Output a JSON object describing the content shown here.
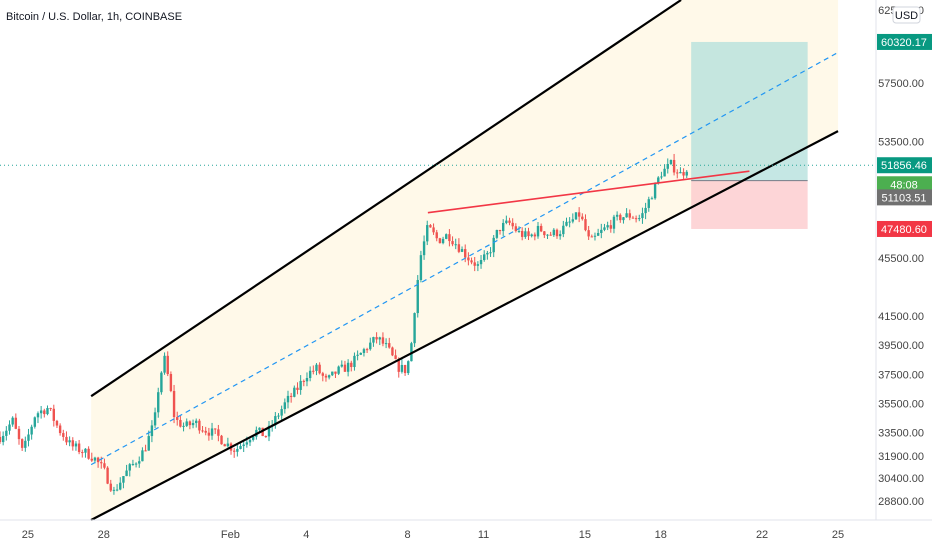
{
  "header": {
    "title": "Bitcoin / U.S. Dollar, 1h, COINBASE",
    "currency": "USD"
  },
  "colors": {
    "candle_up": "#26a69a",
    "candle_down": "#ef5350",
    "channel_fill": "#fff8e7",
    "channel_line": "#000000",
    "midline": "#2196f3",
    "resistance": "#f23645",
    "target_zone": "#b2dfdb",
    "stop_zone": "#fccbcd",
    "last_price_line": "#26a69a",
    "tag_last": "#089981",
    "tag_target": "#089981",
    "tag_current": "#4caf50",
    "tag_mid": "#707070",
    "tag_stop": "#f23645"
  },
  "chart_data": {
    "type": "candlestick",
    "title": "Bitcoin / U.S. Dollar, 1h, COINBASE",
    "price_axis": {
      "ticks": [
        "62500.00",
        "57500.00",
        "53500.00",
        "45500.00",
        "41500.00",
        "39500.00",
        "37500.00",
        "35500.00",
        "33500.00",
        "31900.00",
        "30400.00",
        "28800.00"
      ],
      "tick_values": [
        62500,
        57500,
        53500,
        45500,
        41500,
        39500,
        37500,
        35500,
        33500,
        31900,
        30400,
        28800
      ],
      "ylim": [
        27500,
        63200
      ]
    },
    "time_axis": {
      "ticks": [
        "25",
        "28",
        "Feb",
        "4",
        "8",
        "11",
        "15",
        "18",
        "22",
        "25"
      ],
      "tick_days": [
        -7,
        -4,
        1,
        4,
        8,
        11,
        15,
        18,
        22,
        25
      ],
      "xlim": [
        -8.1,
        26.5
      ]
    },
    "price_tags": [
      {
        "label": "60320.17",
        "value": 60320.17,
        "kind": "target"
      },
      {
        "label": "51856.46",
        "value": 51856.46,
        "kind": "last"
      },
      {
        "label": "48:08",
        "value": 50550,
        "kind": "current"
      },
      {
        "label": "51103.51",
        "value": 49650,
        "kind": "mid"
      },
      {
        "label": "47480.60",
        "value": 47480.6,
        "kind": "stop"
      }
    ],
    "last_price": 51856.46,
    "channel": {
      "upper": [
        [
          -4.5,
          36000
        ],
        [
          18.8,
          63200
        ]
      ],
      "lower": [
        [
          -4.5,
          27500
        ],
        [
          25,
          54200
        ]
      ],
      "midline": [
        [
          -4.5,
          31300
        ],
        [
          25,
          59600
        ]
      ]
    },
    "resistance_line": [
      [
        8.8,
        48600
      ],
      [
        21.5,
        51450
      ]
    ],
    "position": {
      "start_day": 19.2,
      "end_day": 23.8,
      "entry": 50800,
      "target": 60320.17,
      "stop": 47480.6
    },
    "price_path": [
      [
        -8.1,
        33200
      ],
      [
        -7.6,
        34300
      ],
      [
        -7.2,
        32100
      ],
      [
        -6.7,
        34800
      ],
      [
        -6.2,
        35200
      ],
      [
        -5.8,
        33800
      ],
      [
        -5.3,
        32600
      ],
      [
        -4.8,
        32200
      ],
      [
        -4.4,
        31800
      ],
      [
        -4.0,
        30900
      ],
      [
        -3.6,
        29400
      ],
      [
        -3.2,
        30600
      ],
      [
        -2.8,
        31400
      ],
      [
        -2.4,
        32300
      ],
      [
        -2.0,
        34200
      ],
      [
        -1.8,
        37200
      ],
      [
        -1.6,
        38500
      ],
      [
        -1.4,
        36800
      ],
      [
        -1.2,
        34400
      ],
      [
        -0.8,
        33900
      ],
      [
        -0.4,
        34200
      ],
      [
        0.0,
        33700
      ],
      [
        0.4,
        33400
      ],
      [
        0.8,
        32800
      ],
      [
        1.2,
        32300
      ],
      [
        1.6,
        33000
      ],
      [
        2.0,
        33600
      ],
      [
        2.4,
        33300
      ],
      [
        2.8,
        34500
      ],
      [
        3.2,
        35600
      ],
      [
        3.6,
        36400
      ],
      [
        4.0,
        37500
      ],
      [
        4.4,
        37900
      ],
      [
        4.8,
        37000
      ],
      [
        5.2,
        37700
      ],
      [
        5.6,
        38000
      ],
      [
        6.0,
        38600
      ],
      [
        6.4,
        39400
      ],
      [
        6.8,
        40000
      ],
      [
        7.2,
        39300
      ],
      [
        7.6,
        38000
      ],
      [
        7.9,
        37800
      ],
      [
        8.1,
        38700
      ],
      [
        8.3,
        42500
      ],
      [
        8.5,
        45500
      ],
      [
        8.8,
        47600
      ],
      [
        9.2,
        46700
      ],
      [
        9.6,
        47100
      ],
      [
        10.0,
        46300
      ],
      [
        10.4,
        45500
      ],
      [
        10.8,
        44900
      ],
      [
        11.2,
        45800
      ],
      [
        11.6,
        47500
      ],
      [
        12.0,
        47900
      ],
      [
        12.4,
        47200
      ],
      [
        12.8,
        46900
      ],
      [
        13.2,
        47500
      ],
      [
        13.6,
        47100
      ],
      [
        14.0,
        47300
      ],
      [
        14.4,
        47900
      ],
      [
        14.8,
        48500
      ],
      [
        15.2,
        46500
      ],
      [
        15.6,
        47200
      ],
      [
        16.0,
        47800
      ],
      [
        16.4,
        48300
      ],
      [
        16.8,
        48400
      ],
      [
        17.2,
        48200
      ],
      [
        17.6,
        49700
      ],
      [
        18.0,
        51300
      ],
      [
        18.4,
        51900
      ],
      [
        18.8,
        51200
      ],
      [
        19.1,
        51856.46
      ]
    ]
  }
}
